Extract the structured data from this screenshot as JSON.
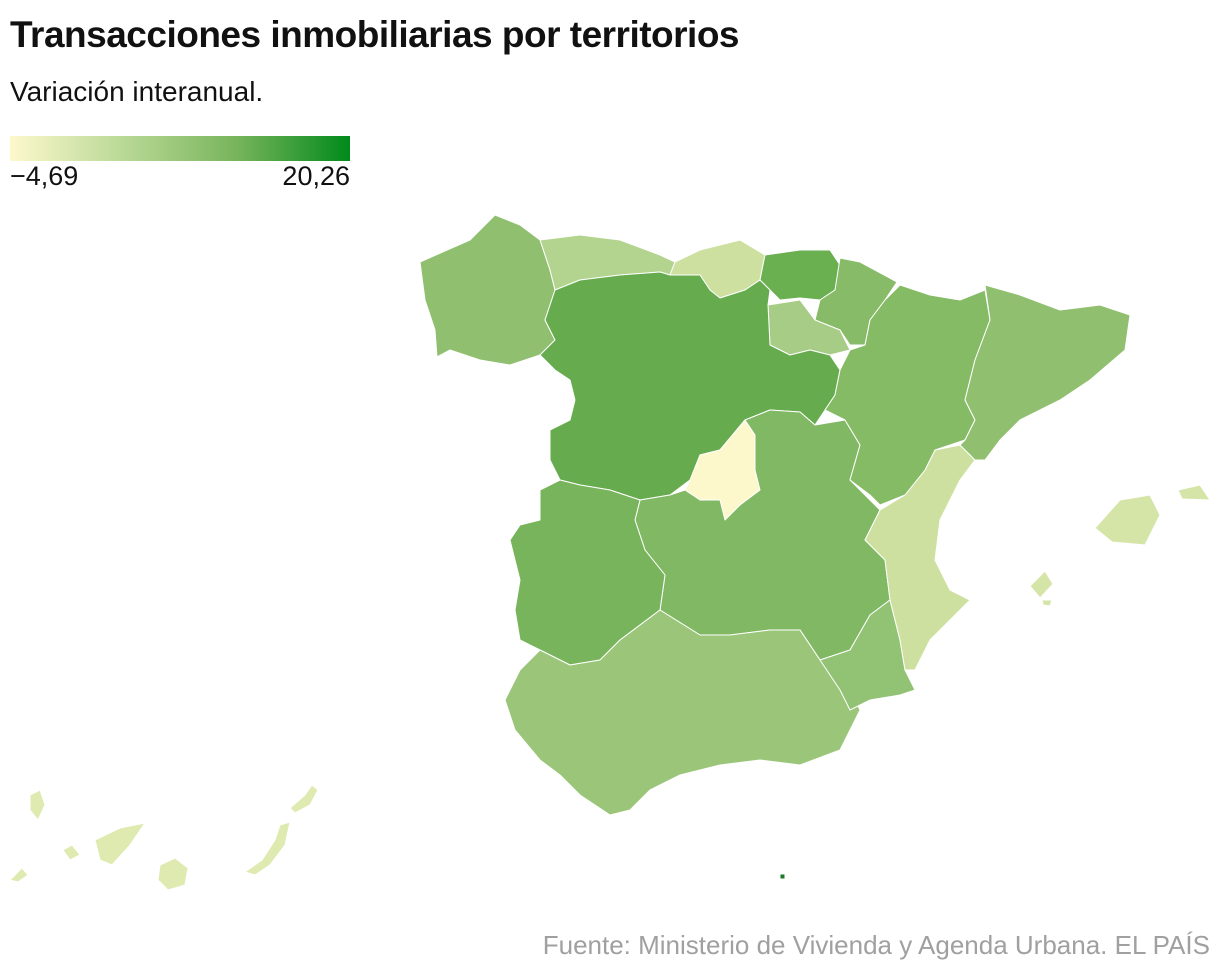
{
  "header": {
    "title": "Transacciones inmobiliarias por territorios",
    "subtitle": "Variación interanual."
  },
  "legend": {
    "min_label": "−4,69",
    "max_label": "20,26",
    "color_min": "#fdf8cc",
    "color_max": "#008a1a"
  },
  "map": {
    "type": "choropleth",
    "region_fills": {
      "galicia": "#8fbf6f",
      "asturias": "#b3d48f",
      "cantabria": "#cde0a0",
      "pais-vasco": "#6aaf50",
      "navarra": "#88bb68",
      "la-rioja": "#a6cc85",
      "castilla-y-leon": "#66ac4e",
      "madrid": "#fdf8cc",
      "castilla-la-mancha": "#80b864",
      "extremadura": "#78b45c",
      "andalucia": "#9bc67a",
      "murcia": "#92c274",
      "comunidad-valenciana": "#cde0a0",
      "aragon": "#86bb66",
      "cataluna": "#8fbf6f",
      "baleares": "#d5e5a8",
      "canarias": "#dfeab0",
      "ceuta": "#1a7a2a"
    }
  },
  "footer": {
    "source": "Fuente: Ministerio de Vivienda y Agenda Urbana. EL PAÍS"
  }
}
